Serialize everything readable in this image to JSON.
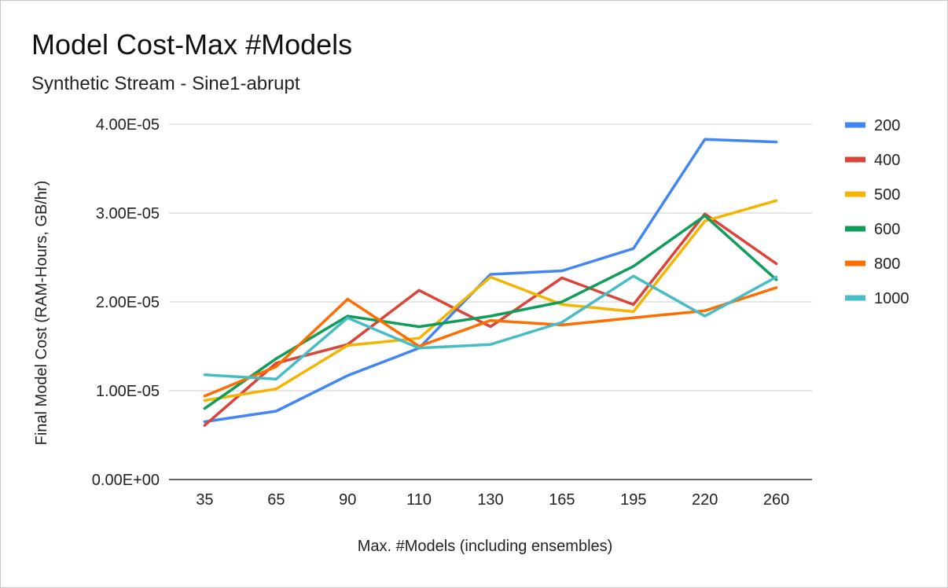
{
  "chart_data": {
    "type": "line",
    "title": "Model Cost-Max #Models",
    "subtitle": "Synthetic Stream - Sine1-abrupt",
    "xlabel": "Max. #Models (including ensembles)",
    "ylabel": "Final Model Cost (RAM-Hours, GB/hr)",
    "categories": [
      "35",
      "65",
      "90",
      "110",
      "130",
      "165",
      "195",
      "220",
      "260"
    ],
    "ylim": [
      0,
      4e-05
    ],
    "yticks": [
      0,
      1e-05,
      2e-05,
      3e-05,
      4e-05
    ],
    "ytick_labels": [
      "0.00E+00",
      "1.00E-05",
      "2.00E-05",
      "3.00E-05",
      "4.00E-05"
    ],
    "grid": true,
    "legend_position": "right",
    "series": [
      {
        "name": "200",
        "color": "#4285f4",
        "values": [
          6.5e-06,
          7.7e-06,
          1.17e-05,
          1.48e-05,
          2.31e-05,
          2.35e-05,
          2.6e-05,
          3.83e-05,
          3.8e-05
        ]
      },
      {
        "name": "400",
        "color": "#db4437",
        "values": [
          6.1e-06,
          1.31e-05,
          1.52e-05,
          2.13e-05,
          1.72e-05,
          2.27e-05,
          1.97e-05,
          2.99e-05,
          2.43e-05
        ]
      },
      {
        "name": "500",
        "color": "#f4b400",
        "values": [
          8.9e-06,
          1.02e-05,
          1.51e-05,
          1.59e-05,
          2.28e-05,
          1.97e-05,
          1.89e-05,
          2.91e-05,
          3.14e-05
        ]
      },
      {
        "name": "600",
        "color": "#0f9d58",
        "values": [
          8e-06,
          1.36e-05,
          1.84e-05,
          1.72e-05,
          1.84e-05,
          2e-05,
          2.4e-05,
          2.97e-05,
          2.25e-05
        ]
      },
      {
        "name": "800",
        "color": "#ff6d01",
        "values": [
          9.4e-06,
          1.27e-05,
          2.03e-05,
          1.5e-05,
          1.79e-05,
          1.74e-05,
          1.82e-05,
          1.9e-05,
          2.16e-05
        ]
      },
      {
        "name": "1000",
        "color": "#46bdc6",
        "values": [
          1.18e-05,
          1.13e-05,
          1.82e-05,
          1.48e-05,
          1.52e-05,
          1.77e-05,
          2.29e-05,
          1.84e-05,
          2.28e-05
        ]
      }
    ]
  }
}
